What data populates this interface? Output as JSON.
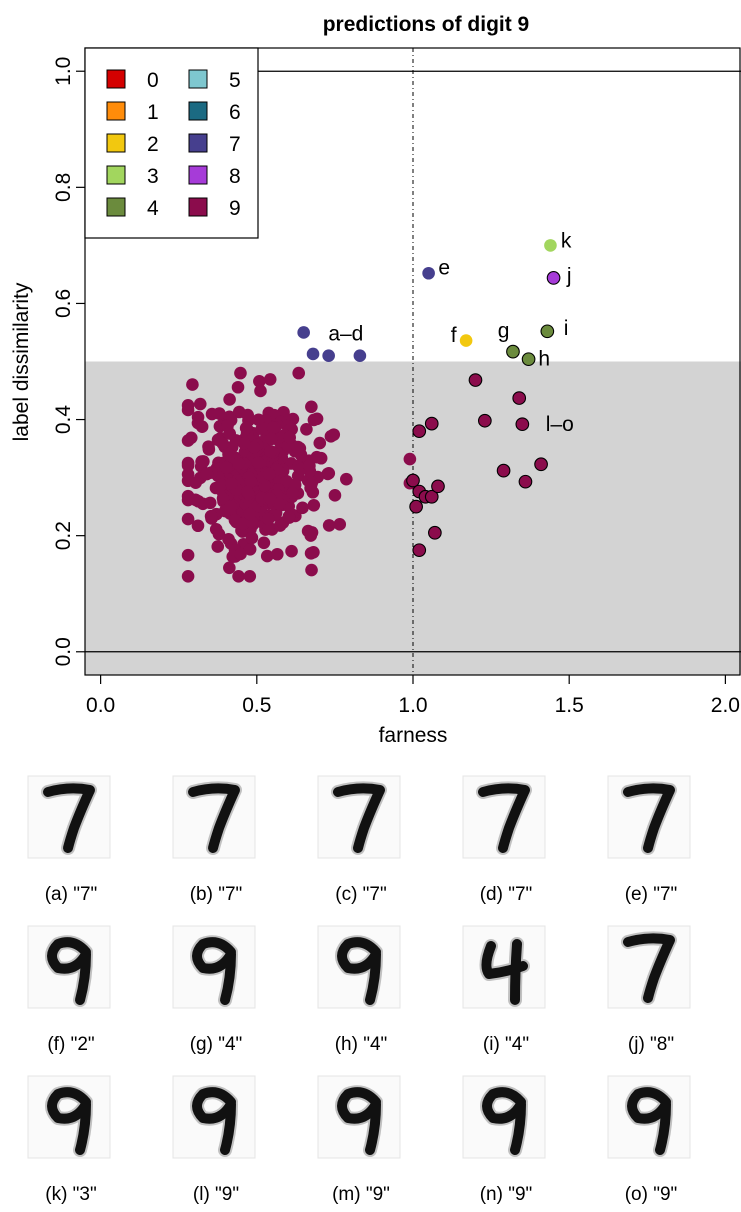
{
  "chart_data": {
    "type": "scatter",
    "title": "predictions of digit 9",
    "xlabel": "farness",
    "ylabel": "label dissimilarity",
    "xlim": [
      -0.05,
      2.05
    ],
    "ylim": [
      -0.04,
      1.04
    ],
    "x_ticks": [
      0.0,
      0.5,
      1.0,
      1.5,
      2.0
    ],
    "y_ticks": [
      0.0,
      0.2,
      0.4,
      0.6,
      0.8,
      1.0
    ],
    "x_tick_labels": [
      "0.0",
      "0.5",
      "1.0",
      "1.5",
      "2.0"
    ],
    "y_tick_labels": [
      "0.0",
      "0.2",
      "0.4",
      "0.6",
      "0.8",
      "1.0"
    ],
    "shaded_region": {
      "y_from": -0.04,
      "y_to": 0.5,
      "color": "#d3d3d3"
    },
    "hlines": [
      0.0,
      1.0
    ],
    "vline_dashed": 1.0,
    "legend": {
      "placement": "top-left",
      "entries": [
        {
          "label": "0",
          "color": "#d40000"
        },
        {
          "label": "1",
          "color": "#ff8c0a"
        },
        {
          "label": "2",
          "color": "#f2c80f"
        },
        {
          "label": "3",
          "color": "#a2d65e"
        },
        {
          "label": "4",
          "color": "#6b8b3d"
        },
        {
          "label": "5",
          "color": "#7ec7cf"
        },
        {
          "label": "6",
          "color": "#1b6a82"
        },
        {
          "label": "7",
          "color": "#463f8e"
        },
        {
          "label": "8",
          "color": "#a63bd8"
        },
        {
          "label": "9",
          "color": "#8b0c4c"
        }
      ]
    },
    "series_9_cluster": {
      "color": "#8b0c4c",
      "center": [
        0.5,
        0.3
      ],
      "spread": [
        0.1,
        0.055
      ],
      "count": 420
    },
    "highlighted_points": [
      {
        "x": 0.65,
        "y": 0.55,
        "color": "#463f8e",
        "outline": false
      },
      {
        "x": 0.68,
        "y": 0.513,
        "color": "#463f8e",
        "outline": false
      },
      {
        "x": 0.73,
        "y": 0.51,
        "color": "#463f8e",
        "outline": false
      },
      {
        "x": 0.83,
        "y": 0.51,
        "color": "#463f8e",
        "outline": false
      },
      {
        "x": 1.05,
        "y": 0.652,
        "color": "#463f8e",
        "outline": false
      },
      {
        "x": 1.17,
        "y": 0.536,
        "color": "#f2c80f",
        "outline": false
      },
      {
        "x": 1.32,
        "y": 0.517,
        "color": "#6b8b3d",
        "outline": true
      },
      {
        "x": 1.37,
        "y": 0.504,
        "color": "#6b8b3d",
        "outline": true
      },
      {
        "x": 1.43,
        "y": 0.552,
        "color": "#6b8b3d",
        "outline": true
      },
      {
        "x": 1.45,
        "y": 0.644,
        "color": "#a63bd8",
        "outline": true
      },
      {
        "x": 1.44,
        "y": 0.7,
        "color": "#a2d65e",
        "outline": false
      },
      {
        "x": 1.2,
        "y": 0.468,
        "color": "#8b0c4c",
        "outline": true
      },
      {
        "x": 1.23,
        "y": 0.398,
        "color": "#8b0c4c",
        "outline": true
      },
      {
        "x": 1.34,
        "y": 0.437,
        "color": "#8b0c4c",
        "outline": true
      },
      {
        "x": 1.35,
        "y": 0.392,
        "color": "#8b0c4c",
        "outline": true
      },
      {
        "x": 1.29,
        "y": 0.312,
        "color": "#8b0c4c",
        "outline": true
      },
      {
        "x": 1.36,
        "y": 0.293,
        "color": "#8b0c4c",
        "outline": true
      },
      {
        "x": 1.41,
        "y": 0.323,
        "color": "#8b0c4c",
        "outline": true
      },
      {
        "x": 1.02,
        "y": 0.38,
        "color": "#8b0c4c",
        "outline": true
      },
      {
        "x": 1.06,
        "y": 0.393,
        "color": "#8b0c4c",
        "outline": true
      },
      {
        "x": 1.0,
        "y": 0.295,
        "color": "#8b0c4c",
        "outline": true
      },
      {
        "x": 1.02,
        "y": 0.276,
        "color": "#8b0c4c",
        "outline": true
      },
      {
        "x": 1.04,
        "y": 0.267,
        "color": "#8b0c4c",
        "outline": true
      },
      {
        "x": 1.06,
        "y": 0.267,
        "color": "#8b0c4c",
        "outline": true
      },
      {
        "x": 1.08,
        "y": 0.285,
        "color": "#8b0c4c",
        "outline": true
      },
      {
        "x": 1.01,
        "y": 0.25,
        "color": "#8b0c4c",
        "outline": true
      },
      {
        "x": 1.07,
        "y": 0.205,
        "color": "#8b0c4c",
        "outline": true
      },
      {
        "x": 1.02,
        "y": 0.175,
        "color": "#8b0c4c",
        "outline": true
      }
    ],
    "annotations": [
      {
        "text": "a–d",
        "x": 0.785,
        "y": 0.548
      },
      {
        "text": "e",
        "x": 1.1,
        "y": 0.662
      },
      {
        "text": "f",
        "x": 1.13,
        "y": 0.546
      },
      {
        "text": "g",
        "x": 1.29,
        "y": 0.553
      },
      {
        "text": "h",
        "x": 1.42,
        "y": 0.505
      },
      {
        "text": "i",
        "x": 1.49,
        "y": 0.558
      },
      {
        "text": "j",
        "x": 1.5,
        "y": 0.648
      },
      {
        "text": "k",
        "x": 1.49,
        "y": 0.708
      },
      {
        "text": "l–o",
        "x": 1.47,
        "y": 0.392
      }
    ]
  },
  "thumbnails": [
    {
      "id": "a",
      "caption": "(a) \"7\"",
      "digit": "7"
    },
    {
      "id": "b",
      "caption": "(b) \"7\"",
      "digit": "7"
    },
    {
      "id": "c",
      "caption": "(c) \"7\"",
      "digit": "7"
    },
    {
      "id": "d",
      "caption": "(d) \"7\"",
      "digit": "7"
    },
    {
      "id": "e",
      "caption": "(e) \"7\"",
      "digit": "7"
    },
    {
      "id": "f",
      "caption": "(f) \"2\"",
      "digit": "9"
    },
    {
      "id": "g",
      "caption": "(g) \"4\"",
      "digit": "9"
    },
    {
      "id": "h",
      "caption": "(h) \"4\"",
      "digit": "9"
    },
    {
      "id": "i",
      "caption": "(i) \"4\"",
      "digit": "4"
    },
    {
      "id": "j",
      "caption": "(j) \"8\"",
      "digit": "7"
    },
    {
      "id": "k",
      "caption": "(k) \"3\"",
      "digit": "9"
    },
    {
      "id": "l",
      "caption": "(l) \"9\"",
      "digit": "9"
    },
    {
      "id": "m",
      "caption": "(m) \"9\"",
      "digit": "9"
    },
    {
      "id": "n",
      "caption": "(n) \"9\"",
      "digit": "9"
    },
    {
      "id": "o",
      "caption": "(o) \"9\"",
      "digit": "9"
    }
  ]
}
